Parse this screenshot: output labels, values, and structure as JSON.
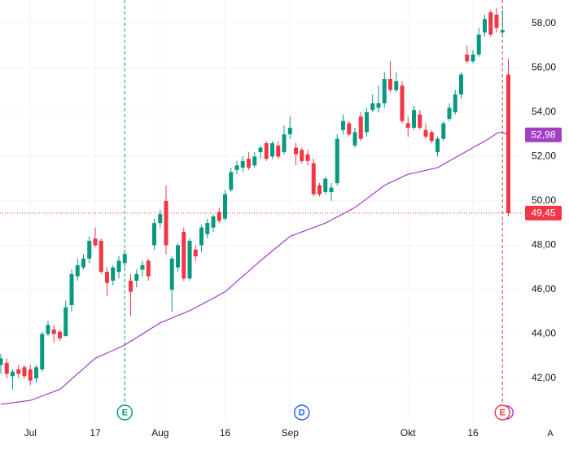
{
  "chart_data": {
    "type": "candlestick",
    "categories": [
      null,
      null,
      null,
      null,
      null,
      "Jul",
      null,
      null,
      null,
      null,
      null,
      null,
      null,
      null,
      null,
      null,
      "17",
      null,
      null,
      null,
      null,
      null,
      null,
      null,
      null,
      null,
      null,
      "Aug",
      null,
      null,
      null,
      null,
      null,
      null,
      null,
      null,
      null,
      null,
      "16",
      null,
      null,
      null,
      null,
      null,
      null,
      null,
      null,
      null,
      null,
      "Sep",
      null,
      null,
      null,
      null,
      null,
      null,
      null,
      null,
      null,
      null,
      null,
      null,
      null,
      null,
      null,
      null,
      null,
      null,
      null,
      "Okt",
      null,
      null,
      null,
      null,
      null,
      null,
      null,
      null,
      null,
      null,
      "16",
      null,
      null,
      null,
      null,
      null,
      null
    ],
    "open": [
      42.6,
      42.7,
      42.1,
      42.4,
      42.5,
      42.4,
      42.0,
      42.4,
      44.0,
      44.2,
      44.1,
      43.9,
      45.3,
      46.6,
      47.0,
      47.4,
      48.3,
      48.2,
      46.8,
      46.4,
      46.8,
      47.2,
      46.4,
      46.4,
      46.9,
      47.3,
      48.0,
      49.0,
      50.0,
      46.0,
      47.0,
      48.6,
      46.5,
      47.8,
      48.0,
      48.5,
      48.8,
      49.5,
      49.2,
      50.5,
      51.4,
      51.5,
      51.9,
      51.6,
      52.2,
      52.6,
      52.0,
      52.5,
      52.2,
      53.0,
      52.4,
      52.3,
      52.1,
      51.7,
      50.7,
      50.4,
      50.4,
      50.8,
      53.2,
      53.5,
      52.5,
      53.8,
      53.1,
      54.1,
      54.2,
      54.4,
      55.5,
      55.0,
      55.2,
      53.5,
      53.3,
      53.9,
      53.2,
      53.1,
      52.2,
      52.8,
      53.7,
      54.0,
      54.8,
      56.6,
      56.3,
      56.6,
      57.6,
      58.5,
      58.4,
      57.6,
      55.7
    ],
    "high": [
      43.1,
      42.9,
      42.4,
      42.6,
      42.6,
      42.6,
      42.6,
      44.1,
      44.6,
      44.4,
      44.2,
      45.5,
      46.9,
      47.4,
      47.6,
      48.4,
      48.8,
      48.3,
      47.0,
      47.1,
      47.5,
      47.8,
      46.7,
      46.9,
      47.3,
      47.4,
      49.2,
      49.6,
      50.7,
      47.5,
      48.1,
      48.8,
      48.3,
      48.0,
      48.9,
      49.2,
      49.4,
      49.7,
      50.5,
      51.5,
      51.8,
      52.0,
      52.2,
      52.2,
      52.5,
      52.7,
      52.7,
      52.7,
      53.4,
      53.8,
      52.6,
      52.4,
      52.3,
      51.9,
      50.8,
      51.1,
      50.8,
      53.0,
      53.9,
      53.6,
      53.3,
      54.0,
      54.2,
      54.8,
      55.2,
      55.8,
      56.3,
      55.8,
      55.4,
      53.8,
      54.3,
      54.1,
      53.5,
      53.2,
      52.9,
      53.6,
      54.4,
      55.0,
      55.8,
      57.0,
      56.8,
      57.8,
      58.4,
      58.6,
      58.7,
      58.6,
      56.4
    ],
    "low": [
      42.2,
      42.0,
      41.5,
      42.0,
      42.0,
      41.7,
      41.8,
      42.3,
      43.9,
      43.6,
      43.7,
      43.9,
      45.0,
      46.4,
      46.9,
      47.2,
      47.9,
      46.7,
      45.7,
      46.2,
      46.5,
      47.0,
      44.8,
      46.1,
      46.6,
      46.4,
      47.8,
      48.8,
      47.6,
      45.0,
      46.8,
      46.4,
      46.4,
      47.3,
      47.7,
      48.3,
      48.6,
      49.0,
      49.1,
      50.4,
      51.2,
      51.3,
      51.4,
      51.5,
      51.9,
      51.8,
      51.9,
      51.9,
      52.1,
      52.8,
      51.6,
      51.7,
      51.6,
      50.2,
      50.2,
      50.3,
      50.0,
      50.7,
      53.0,
      52.9,
      52.4,
      52.7,
      52.9,
      54.0,
      54.0,
      54.2,
      54.9,
      54.9,
      53.5,
      52.9,
      53.2,
      53.2,
      52.8,
      52.6,
      52.0,
      52.7,
      53.6,
      53.9,
      54.6,
      56.2,
      56.2,
      56.5,
      57.4,
      57.4,
      57.6,
      57.5,
      49.3
    ],
    "close": [
      42.9,
      42.2,
      42.3,
      42.2,
      42.1,
      41.9,
      42.5,
      44.0,
      44.4,
      44.0,
      43.8,
      45.2,
      46.7,
      47.1,
      47.4,
      48.2,
      48.0,
      46.8,
      46.3,
      47.0,
      47.3,
      47.6,
      45.9,
      46.7,
      47.1,
      46.6,
      49.0,
      49.4,
      48.0,
      47.4,
      48.0,
      46.5,
      48.2,
      47.5,
      48.8,
      49.0,
      49.3,
      49.1,
      50.3,
      51.3,
      51.6,
      51.8,
      51.5,
      52.0,
      52.4,
      51.9,
      52.6,
      52.0,
      53.0,
      53.3,
      52.1,
      51.8,
      51.8,
      50.3,
      50.3,
      51.0,
      50.6,
      52.8,
      53.6,
      53.0,
      53.1,
      52.8,
      54.0,
      54.4,
      54.4,
      55.5,
      55.0,
      55.4,
      53.6,
      53.3,
      54.1,
      53.3,
      52.9,
      52.7,
      52.8,
      53.5,
      54.2,
      54.8,
      55.7,
      56.3,
      56.6,
      57.5,
      58.2,
      57.5,
      57.8,
      57.7,
      49.45
    ],
    "close_value_label": "49,45",
    "up_color": "#089981",
    "down_color": "#f23645",
    "moving_average": {
      "color": "#a33fc4",
      "values": [
        40.83,
        40.86,
        40.9,
        40.93,
        40.97,
        41.0,
        41.1,
        41.2,
        41.3,
        41.4,
        41.5,
        41.73,
        41.97,
        42.2,
        42.43,
        42.67,
        42.9,
        43.02,
        43.14,
        43.26,
        43.38,
        43.5,
        43.67,
        43.83,
        44.0,
        44.17,
        44.33,
        44.5,
        44.61,
        44.72,
        44.83,
        44.94,
        45.05,
        45.19,
        45.33,
        45.47,
        45.61,
        45.76,
        45.9,
        46.13,
        46.37,
        46.6,
        46.83,
        47.07,
        47.3,
        47.52,
        47.74,
        47.96,
        48.18,
        48.4,
        48.5,
        48.6,
        48.7,
        48.8,
        48.9,
        49.0,
        49.14,
        49.28,
        49.42,
        49.56,
        49.7,
        49.9,
        50.1,
        50.3,
        50.5,
        50.7,
        50.83,
        50.95,
        51.08,
        51.2,
        51.26,
        51.32,
        51.38,
        51.44,
        51.5,
        51.65,
        51.8,
        51.95,
        52.1,
        52.25,
        52.4,
        52.55,
        52.7,
        52.85,
        53.05,
        53.1,
        52.98
      ],
      "value_label": "52,98"
    },
    "events": [
      {
        "index": 21,
        "label": "E",
        "color": "#089981"
      },
      {
        "index": 51,
        "label": "D",
        "color": "#2962ff"
      },
      {
        "index": 85,
        "label": "E",
        "color": "#f23645"
      }
    ],
    "scale_mode_label": "A",
    "ylim": [
      39.98,
      59.06
    ],
    "yticks": [
      {
        "value": 42,
        "label": "42,00"
      },
      {
        "value": 44,
        "label": "44,00"
      },
      {
        "value": 46,
        "label": "46,00"
      },
      {
        "value": 48,
        "label": "48,00"
      },
      {
        "value": 50,
        "label": "50,00"
      },
      {
        "value": 52,
        "label": "52,00"
      },
      {
        "value": 54,
        "label": "54,00"
      },
      {
        "value": 56,
        "label": "56,00"
      },
      {
        "value": 58,
        "label": "58,00"
      }
    ],
    "grid": true
  }
}
